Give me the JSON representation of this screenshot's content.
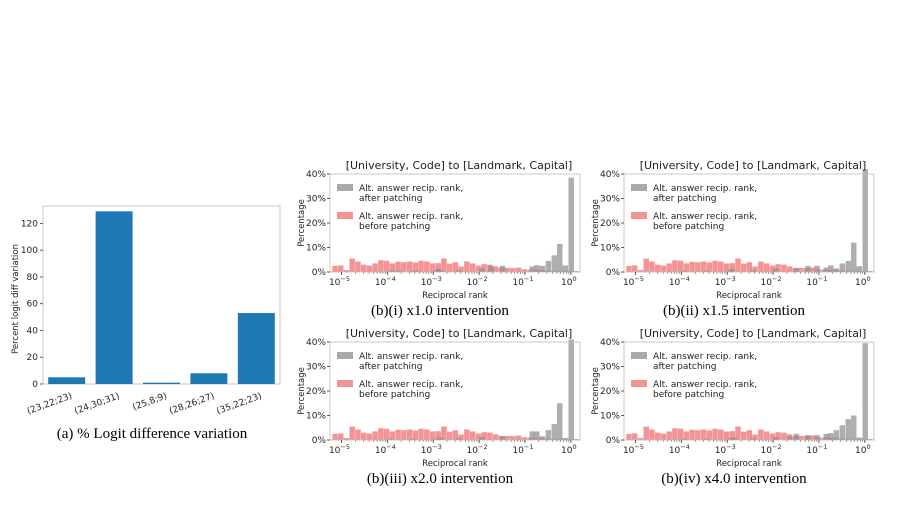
{
  "chart_data": [
    {
      "id": "a",
      "type": "bar",
      "caption": "(a) % Logit difference variation",
      "ylabel": "Percent logit diff variation",
      "categories": [
        "(23,22;23)",
        "(24,30;31)",
        "(25,8;9)",
        "(28,26;27)",
        "(35,22;23)"
      ],
      "values": [
        5,
        129,
        1,
        8,
        53
      ],
      "ylim": [
        0,
        133
      ],
      "yticks": [
        0,
        20,
        40,
        60,
        80,
        100,
        120
      ],
      "color": "#1f77b4"
    },
    {
      "id": "b1",
      "type": "histogram",
      "title": "[University, Code] to [Landmark, Capital]",
      "caption": "(b)(i) x1.0 intervention",
      "xlabel": "Reciprocal rank",
      "ylabel": "Percentage",
      "ylim": [
        0,
        40
      ],
      "yticks": [
        "0%",
        "10%",
        "20%",
        "30%",
        "40%"
      ],
      "xticks": [
        -5,
        -4,
        -3,
        -2,
        -1,
        0
      ],
      "legend": [
        "Alt. answer recip. rank,|after patching",
        "Alt. answer recip. rank,|before patching"
      ],
      "series": [
        {
          "name": "after",
          "color": "#8c8c8c",
          "bins_log10": [
            -4.0,
            -3.9,
            -3.8,
            -3.5,
            -3.4,
            -3.0,
            -2.95,
            -2.9,
            -2.5,
            -2.0,
            -1.8,
            -1.55,
            -0.9,
            -0.8,
            -0.68,
            -0.55,
            -0.42,
            -0.3,
            -0.18,
            -0.05
          ],
          "values": [
            0.5,
            0.5,
            0.5,
            0.5,
            0.5,
            0.6,
            1.2,
            0.8,
            0.7,
            1.5,
            2.5,
            2.5,
            2.3,
            2.8,
            2.5,
            4.5,
            6.8,
            11.5,
            2.7,
            38.5
          ]
        },
        {
          "name": "before",
          "color": "#f28080",
          "values": [
            2.5,
            2.7,
            0.8,
            5.5,
            4.3,
            3.0,
            2.6,
            3.5,
            4.8,
            4.6,
            3.5,
            4.2,
            4.0,
            4.3,
            3.9,
            4.6,
            4.3,
            3.5,
            3.6,
            5.5,
            3.4,
            4.0,
            2.2,
            4.3,
            3.5,
            2.6,
            3.2,
            3.0,
            2.3,
            1.7,
            1.7,
            1.6,
            1.8,
            1.1,
            1.0,
            0.8,
            0.9,
            0.6,
            0.5,
            0.5,
            0.5,
            0.5,
            0.4
          ]
        }
      ]
    },
    {
      "id": "b2",
      "type": "histogram",
      "title": "[University, Code] to [Landmark, Capital]",
      "caption": "(b)(ii) x1.5 intervention",
      "xlabel": "Reciprocal rank",
      "ylabel": "Percentage",
      "ylim": [
        0,
        40
      ],
      "yticks": [
        "0%",
        "10%",
        "20%",
        "30%",
        "40%"
      ],
      "xticks": [
        -5,
        -4,
        -3,
        -2,
        -1,
        0
      ],
      "legend": [
        "Alt. answer recip. rank,|after patching",
        "Alt. answer recip. rank,|before patching"
      ],
      "series": [
        {
          "name": "after",
          "color": "#8c8c8c",
          "bins_log10": [
            -4.0,
            -3.5,
            -3.0,
            -2.95,
            -2.5,
            -2.0,
            -1.55,
            -1.3,
            -1.1,
            -0.9,
            -0.8,
            -0.68,
            -0.55,
            -0.42,
            -0.3,
            -0.18,
            -0.05
          ],
          "values": [
            0.5,
            0.5,
            0.6,
            1.2,
            0.7,
            1.5,
            1.5,
            2.5,
            2.5,
            1.8,
            2.7,
            1.5,
            3.5,
            4.5,
            12.0,
            2.4,
            42.0
          ]
        },
        {
          "name": "before",
          "color": "#f28080",
          "values": [
            2.5,
            2.7,
            0.8,
            5.5,
            4.3,
            3.0,
            2.6,
            3.5,
            4.8,
            4.6,
            3.5,
            4.2,
            4.0,
            4.3,
            3.9,
            4.6,
            4.3,
            3.5,
            3.6,
            5.5,
            3.4,
            4.0,
            2.2,
            4.3,
            3.5,
            2.6,
            3.2,
            3.0,
            2.3,
            1.7,
            1.7,
            1.6,
            1.8,
            1.1,
            1.0,
            0.8,
            0.9,
            0.6,
            0.5,
            0.5,
            0.5,
            0.5,
            0.4
          ]
        }
      ]
    },
    {
      "id": "b3",
      "type": "histogram",
      "title": "[University, Code] to [Landmark, Capital]",
      "caption": "(b)(iii) x2.0 intervention",
      "xlabel": "Reciprocal rank",
      "ylabel": "Percentage",
      "ylim": [
        0,
        40
      ],
      "yticks": [
        "0%",
        "10%",
        "20%",
        "30%",
        "40%"
      ],
      "xticks": [
        -5,
        -4,
        -3,
        -2,
        -1,
        0
      ],
      "legend": [
        "Alt. answer recip. rank,|after patching",
        "Alt. answer recip. rank,|before patching"
      ],
      "series": [
        {
          "name": "after",
          "color": "#8c8c8c",
          "bins_log10": [
            -4.0,
            -3.5,
            -3.0,
            -2.9,
            -2.5,
            -2.0,
            -1.55,
            -0.9,
            -0.8,
            -0.68,
            -0.55,
            -0.42,
            -0.3,
            -0.18,
            -0.05
          ],
          "values": [
            0.5,
            0.5,
            0.6,
            1.0,
            0.7,
            1.2,
            1.5,
            3.5,
            3.5,
            1.5,
            4.0,
            6.5,
            15.0,
            0.8,
            41.0
          ]
        },
        {
          "name": "before",
          "color": "#f28080",
          "values": [
            2.5,
            2.7,
            0.8,
            5.5,
            4.3,
            3.0,
            2.6,
            3.5,
            4.8,
            4.6,
            3.5,
            4.2,
            4.0,
            4.3,
            3.9,
            4.6,
            4.3,
            3.5,
            3.6,
            5.5,
            3.4,
            4.0,
            2.2,
            4.3,
            3.5,
            2.6,
            3.2,
            3.0,
            2.3,
            1.7,
            1.7,
            1.6,
            1.8,
            1.1,
            1.0,
            0.8,
            0.9,
            0.6,
            0.5,
            0.5,
            0.5,
            0.5,
            0.4
          ]
        }
      ]
    },
    {
      "id": "b4",
      "type": "histogram",
      "title": "[University, Code] to [Landmark, Capital]",
      "caption": "(b)(iv) x4.0 intervention",
      "xlabel": "Reciprocal rank",
      "ylabel": "Percentage",
      "ylim": [
        0,
        40
      ],
      "yticks": [
        "0%",
        "10%",
        "20%",
        "30%",
        "40%"
      ],
      "xticks": [
        -5,
        -4,
        -3,
        -2,
        -1,
        0
      ],
      "legend": [
        "Alt. answer recip. rank,|after patching",
        "Alt. answer recip. rank,|before patching"
      ],
      "series": [
        {
          "name": "after",
          "color": "#8c8c8c",
          "bins_log10": [
            -4.0,
            -3.5,
            -3.0,
            -2.9,
            -2.5,
            -2.0,
            -1.7,
            -1.55,
            -1.3,
            -1.1,
            -0.9,
            -0.8,
            -0.68,
            -0.55,
            -0.42,
            -0.3,
            -0.18,
            -0.05
          ],
          "values": [
            0.5,
            0.5,
            0.6,
            1.0,
            0.7,
            1.2,
            1.5,
            2.5,
            2.0,
            2.0,
            2.5,
            2.8,
            4.0,
            6.0,
            8.5,
            10.0,
            1.0,
            39.5
          ]
        },
        {
          "name": "before",
          "color": "#f28080",
          "values": [
            2.5,
            2.7,
            0.8,
            5.5,
            4.3,
            3.0,
            2.6,
            3.5,
            4.8,
            4.6,
            3.5,
            4.2,
            4.0,
            4.3,
            3.9,
            4.6,
            4.3,
            3.5,
            3.6,
            5.5,
            3.4,
            4.0,
            2.2,
            4.3,
            3.5,
            2.6,
            3.2,
            3.0,
            2.3,
            1.7,
            1.7,
            1.6,
            1.8,
            1.1,
            1.0,
            0.8,
            0.9,
            0.6,
            0.5,
            0.5,
            0.5,
            0.5,
            0.4
          ]
        }
      ]
    }
  ]
}
